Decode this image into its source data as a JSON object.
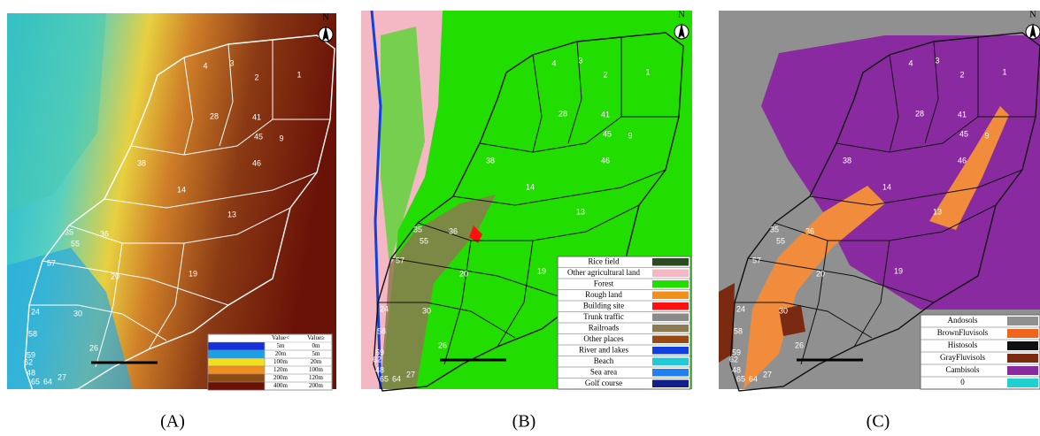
{
  "panels": [
    {
      "label": "(A)",
      "north": "N",
      "line_color": "#ffffff",
      "text_color": "#ffffff",
      "legend": {
        "header": [
          "Value<",
          "Value≥"
        ],
        "rows": [
          {
            "color": "#1530d8",
            "upper": "5m",
            "lower": "0m"
          },
          {
            "color": "#1aa0e8",
            "upper": "20m",
            "lower": "5m"
          },
          {
            "color": "#f0e020",
            "upper": "100m",
            "lower": "20m"
          },
          {
            "color": "#f08c20",
            "upper": "120m",
            "lower": "100m"
          },
          {
            "color": "#8c4a14",
            "upper": "200m",
            "lower": "120m"
          },
          {
            "color": "#6a1208",
            "upper": "400m",
            "lower": "200m"
          }
        ]
      },
      "basins": [
        "1",
        "2",
        "3",
        "4",
        "28",
        "41",
        "45",
        "9",
        "46",
        "38",
        "14",
        "13",
        "35",
        "55",
        "36",
        "57",
        "20",
        "19",
        "24",
        "58",
        "30",
        "59",
        "26",
        "48",
        "62",
        "27",
        "65",
        "64"
      ]
    },
    {
      "label": "(B)",
      "north": "N",
      "line_color": "#111111",
      "text_color": "#ffffff",
      "legend": {
        "rows": [
          {
            "color": "#2c4a22",
            "name": "Rice field"
          },
          {
            "color": "#f4b8c4",
            "name": "Other agricultural land"
          },
          {
            "color": "#22dd00",
            "name": "Forest"
          },
          {
            "color": "#f09018",
            "name": "Rough land"
          },
          {
            "color": "#ff1010",
            "name": "Building site"
          },
          {
            "color": "#8a8a8a",
            "name": "Trunk traffic"
          },
          {
            "color": "#8c7a50",
            "name": "Railroads"
          },
          {
            "color": "#9a4a10",
            "name": "Other places"
          },
          {
            "color": "#1040e0",
            "name": "River and lakes"
          },
          {
            "color": "#20c8d8",
            "name": "Beach"
          },
          {
            "color": "#2080f0",
            "name": "Sea area"
          },
          {
            "color": "#10208a",
            "name": "Golf course"
          }
        ]
      },
      "basins": [
        "1",
        "2",
        "3",
        "4",
        "28",
        "41",
        "45",
        "9",
        "46",
        "38",
        "14",
        "13",
        "35",
        "55",
        "36",
        "57",
        "20",
        "19",
        "24",
        "58",
        "30",
        "59",
        "26",
        "48",
        "62",
        "27",
        "65",
        "64"
      ]
    },
    {
      "label": "(C)",
      "north": "N",
      "line_color": "#111111",
      "text_color": "#ffffff",
      "legend": {
        "rows": [
          {
            "color": "#909090",
            "name": "Andosols"
          },
          {
            "color": "#f0641e",
            "name": "BrownFluvisols"
          },
          {
            "color": "#101010",
            "name": "Histosols"
          },
          {
            "color": "#7a2a10",
            "name": "GrayFluvisols"
          },
          {
            "color": "#8a2aa0",
            "name": "Cambisols"
          },
          {
            "color": "#20d0d0",
            "name": "0"
          }
        ]
      },
      "basins": [
        "1",
        "2",
        "3",
        "4",
        "28",
        "41",
        "45",
        "9",
        "46",
        "38",
        "14",
        "13",
        "35",
        "55",
        "36",
        "57",
        "20",
        "19",
        "24",
        "58",
        "30",
        "59",
        "26",
        "48",
        "62",
        "27",
        "65",
        "64"
      ]
    }
  ]
}
